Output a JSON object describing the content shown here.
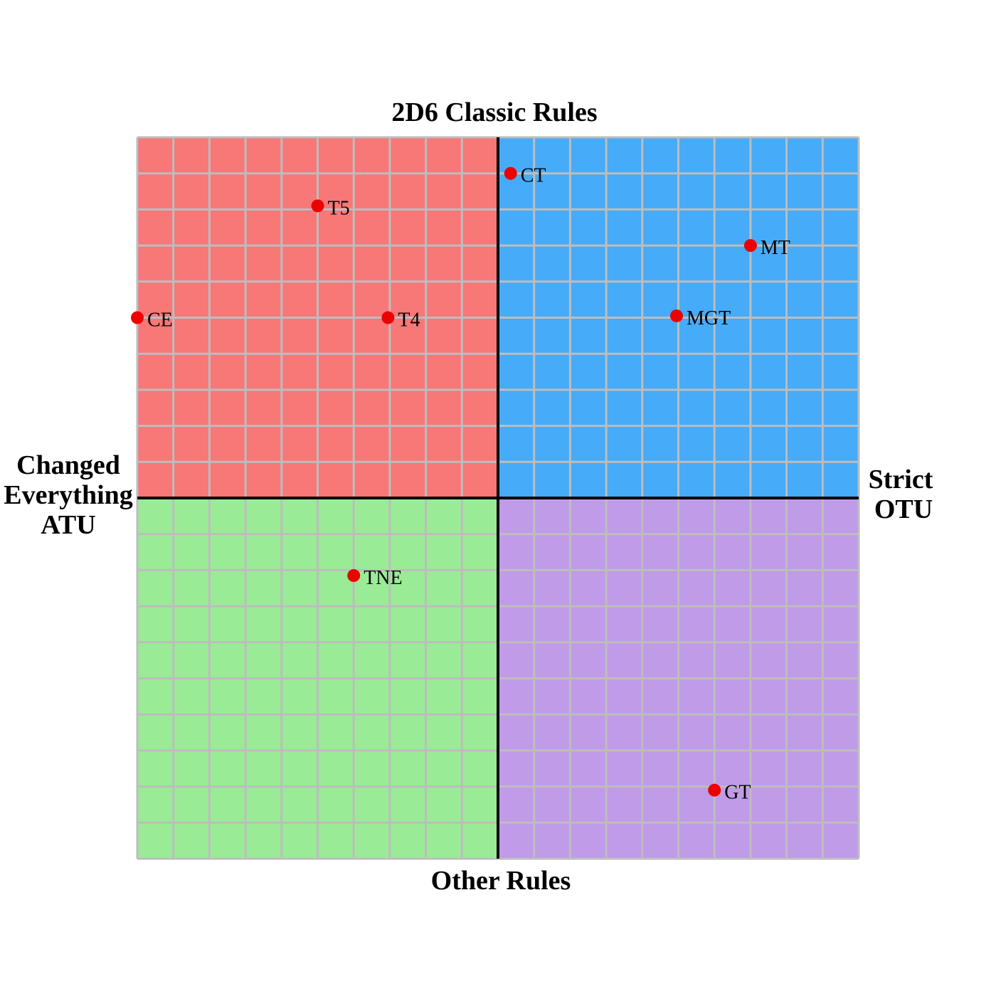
{
  "chart_data": {
    "type": "scatter",
    "title": "2D6 Classic Rules",
    "bottom_label": "Other Rules",
    "left_label": [
      "Changed",
      "Everything",
      "ATU"
    ],
    "right_label": [
      "Strict",
      "OTU"
    ],
    "xlim": [
      -10,
      10
    ],
    "ylim": [
      -10,
      10
    ],
    "grid": true,
    "quadrant_colors": {
      "top_left": "#f87777",
      "top_right": "#46abf8",
      "bottom_left": "#9aeb96",
      "bottom_right": "#c09be8"
    },
    "grid_color": "#bdbdbd",
    "axis_color": "#000000",
    "point_color": "#ee0000",
    "points": [
      {
        "label": "CT",
        "x": 0.35,
        "y": 9.0
      },
      {
        "label": "T5",
        "x": -5.0,
        "y": 8.1
      },
      {
        "label": "MT",
        "x": 7.0,
        "y": 7.0
      },
      {
        "label": "CE",
        "x": -10.0,
        "y": 5.0
      },
      {
        "label": "T4",
        "x": -3.05,
        "y": 5.0
      },
      {
        "label": "MGT",
        "x": 4.95,
        "y": 5.05
      },
      {
        "label": "TNE",
        "x": -4.0,
        "y": -2.15
      },
      {
        "label": "GT",
        "x": 6.0,
        "y": -8.1
      }
    ]
  }
}
